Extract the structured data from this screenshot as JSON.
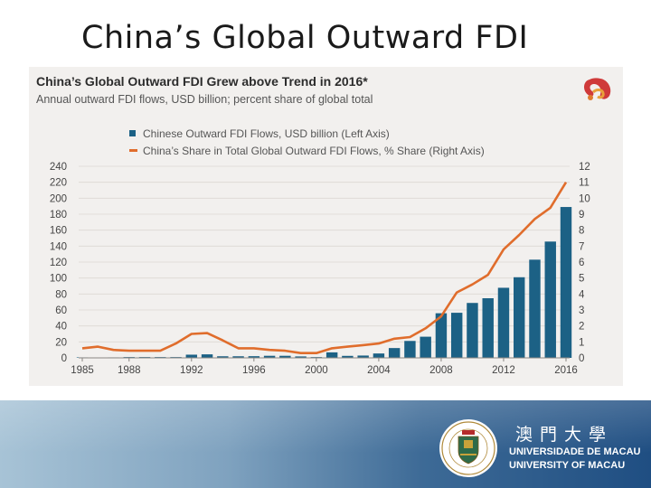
{
  "slide": {
    "title": "China’s Global Outward FDI"
  },
  "colors": {
    "bar": "#1c6185",
    "line": "#e06d2c",
    "panel": "#f2f0ee"
  },
  "chart_data": {
    "type": "bar",
    "title": "China’s Global Outward FDI Grew above Trend in 2016*",
    "subtitle": "Annual outward FDI flows, USD billion; percent share of global total",
    "x": [
      1985,
      1986,
      1987,
      1988,
      1989,
      1990,
      1991,
      1992,
      1993,
      1994,
      1995,
      1996,
      1997,
      1998,
      1999,
      2000,
      2001,
      2002,
      2003,
      2004,
      2005,
      2006,
      2007,
      2008,
      2009,
      2010,
      2011,
      2012,
      2013,
      2014,
      2015,
      2016
    ],
    "xticks": [
      1985,
      1988,
      1992,
      1996,
      2000,
      2004,
      2008,
      2012,
      2016
    ],
    "series": [
      {
        "name": "Chinese Outward FDI Flows, USD billion (Left Axis)",
        "kind": "bar",
        "axis": "left",
        "values": [
          0.6,
          0.5,
          0.6,
          1,
          1,
          1,
          1,
          4,
          4.4,
          2,
          2,
          2.1,
          2.6,
          2.6,
          1.8,
          1,
          6.9,
          2.5,
          2.9,
          5.5,
          12.3,
          21.2,
          26.5,
          55.9,
          56.5,
          68.8,
          74.7,
          87.8,
          101,
          123,
          145.7,
          189
        ]
      },
      {
        "name": "China’s Share in Total Global Outward FDI Flows, % Share (Right Axis)",
        "kind": "line",
        "axis": "right",
        "values": [
          0.6,
          0.7,
          0.5,
          0.45,
          0.45,
          0.45,
          0.9,
          1.5,
          1.55,
          1.1,
          0.6,
          0.6,
          0.5,
          0.45,
          0.3,
          0.3,
          0.6,
          0.7,
          0.8,
          0.9,
          1.2,
          1.3,
          1.85,
          2.6,
          4.1,
          4.6,
          5.2,
          6.8,
          7.7,
          8.7,
          9.4,
          11
        ]
      }
    ],
    "ylim_left": [
      0,
      240
    ],
    "yticks_left": [
      0,
      20,
      40,
      60,
      80,
      100,
      120,
      140,
      160,
      180,
      200,
      220,
      240
    ],
    "ylim_right": [
      0,
      12
    ],
    "yticks_right": [
      0,
      1,
      2,
      3,
      4,
      5,
      6,
      7,
      8,
      9,
      10,
      11,
      12
    ],
    "grid": true,
    "legend_position": "top-left"
  },
  "footer": {
    "chinese_name": "澳門大學",
    "portuguese_name": "UNIVERSIDADE DE MACAU",
    "english_name": "UNIVERSITY OF MACAU"
  }
}
